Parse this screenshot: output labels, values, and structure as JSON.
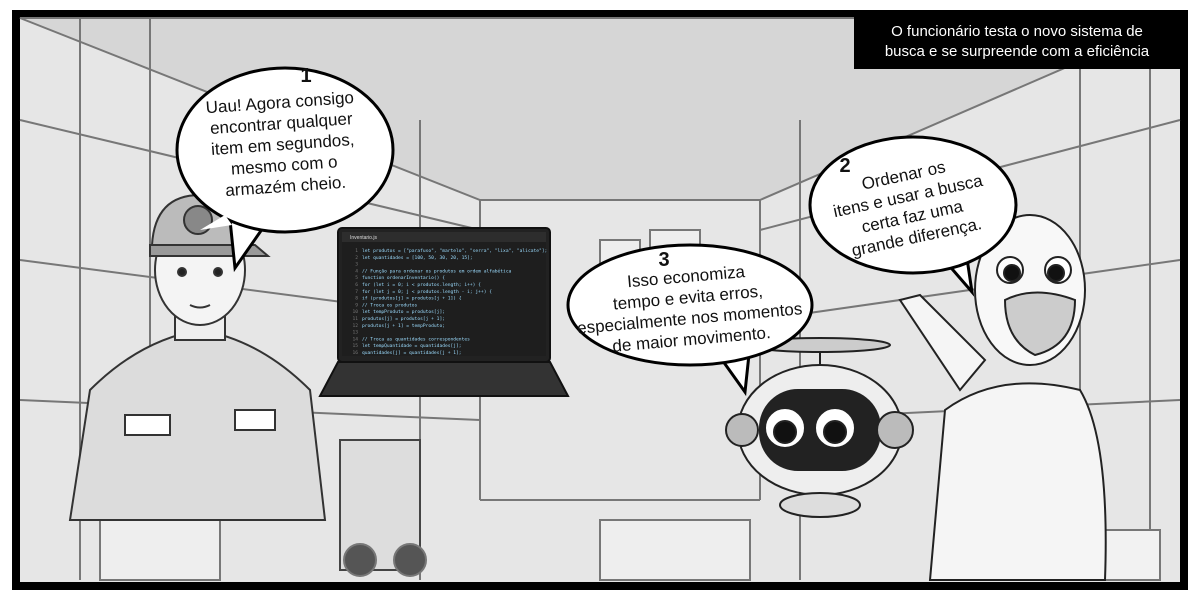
{
  "caption": {
    "lines": [
      "O funcionário testa o novo sistema de",
      "busca e se surpreende com a eficiência"
    ]
  },
  "bubbles": [
    {
      "number": "1",
      "lines": [
        "Uau! Agora consigo",
        "encontrar qualquer",
        "item em segundos,",
        "mesmo com o",
        "armazém cheio."
      ]
    },
    {
      "number": "2",
      "lines": [
        "Ordenar os",
        "itens e usar a busca",
        "certa faz uma",
        "grande diferença."
      ]
    },
    {
      "number": "3",
      "lines": [
        "Isso economiza",
        "tempo e evita erros,",
        "especialmente nos momentos",
        "de maior movimento."
      ]
    }
  ],
  "laptop": {
    "tab": "Inventario.js",
    "code": [
      {
        "number": 1,
        "text": "let produtos = [\"parafuso\", \"martelo\", \"serra\", \"lixa\", \"alicate\"];"
      },
      {
        "number": 2,
        "text": "let quantidades = [100, 50, 30, 20, 15];"
      },
      {
        "number": 3,
        "text": ""
      },
      {
        "number": 4,
        "text": "// Função para ordenar os produtos em ordem alfabética"
      },
      {
        "number": 5,
        "text": "function ordenarInventario() {"
      },
      {
        "number": 6,
        "text": "    for (let i = 0; i < produtos.length; i++) {"
      },
      {
        "number": 7,
        "text": "        for (let j = 0; j < produtos.length - i; j++) {"
      },
      {
        "number": 8,
        "text": "            if (produtos[j] > produtos[j + 1]) {"
      },
      {
        "number": 9,
        "text": "                // Troca os produtos"
      },
      {
        "number": 10,
        "text": "                let tempProduto = produtos[j];"
      },
      {
        "number": 11,
        "text": "                produtos[j] = produtos[j + 1];"
      },
      {
        "number": 12,
        "text": "                produtos[j + 1] = tempProduto;"
      },
      {
        "number": 13,
        "text": ""
      },
      {
        "number": 14,
        "text": "                // Troca as quantidades correspondentes"
      },
      {
        "number": 15,
        "text": "                let tempQuantidade = quantidades[j];"
      },
      {
        "number": 16,
        "text": "                quantidades[j] = quantidades[j + 1];"
      }
    ]
  }
}
